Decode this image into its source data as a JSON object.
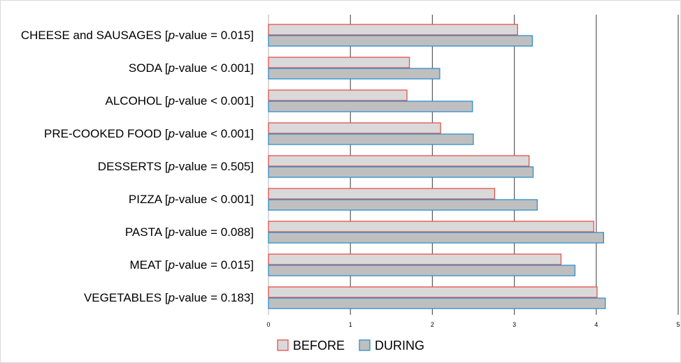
{
  "chart_data": {
    "type": "bar",
    "orientation": "horizontal",
    "categories": [
      {
        "name": "CHEESE and SAUSAGES",
        "stat": "p",
        "stat_rest": "-value = 0.015"
      },
      {
        "name": "SODA",
        "stat": "p",
        "stat_rest": "-value < 0.001"
      },
      {
        "name": "ALCOHOL",
        "stat": "p",
        "stat_rest": "-value < 0.001"
      },
      {
        "name": "PRE-COOKED FOOD",
        "stat": "p",
        "stat_rest": "-value < 0.001"
      },
      {
        "name": "DESSERTS",
        "stat": "p",
        "stat_rest": "-value = 0.505"
      },
      {
        "name": "PIZZA",
        "stat": "p",
        "stat_rest": "-value < 0.001"
      },
      {
        "name": "PASTA",
        "stat": "p",
        "stat_rest": "-value = 0.088"
      },
      {
        "name": "MEAT",
        "stat": "p",
        "stat_rest": "-value = 0.015"
      },
      {
        "name": "VEGETABLES",
        "stat": "p",
        "stat_rest": "-value = 0.183"
      }
    ],
    "series": [
      {
        "name": "BEFORE",
        "fill": "#d9d9d9",
        "stroke": "#e8504a",
        "values": [
          3.04,
          1.72,
          1.69,
          2.1,
          3.18,
          2.76,
          3.97,
          3.57,
          4.01
        ]
      },
      {
        "name": "DURING",
        "fill": "#bfbfbf",
        "stroke": "#2e8fd0",
        "values": [
          3.22,
          2.09,
          2.49,
          2.5,
          3.23,
          3.28,
          4.09,
          3.74,
          4.11
        ]
      }
    ],
    "xlim": [
      0,
      5
    ],
    "xticks": [
      "0",
      "1",
      "2",
      "3",
      "4",
      "5"
    ],
    "xlabel": "",
    "ylabel": "",
    "title": "",
    "grid": "vertical",
    "legend": "bottom-center"
  },
  "colors": {
    "gridline": "#595959",
    "axis": "#bfbfbf"
  }
}
